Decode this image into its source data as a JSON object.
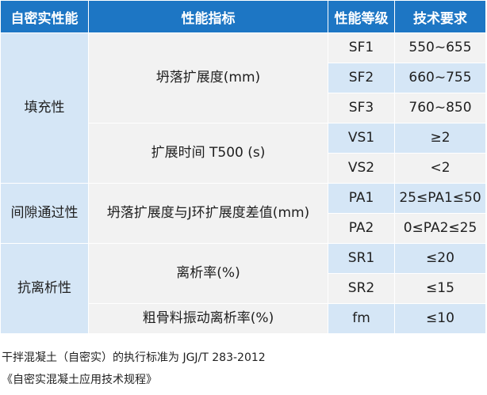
{
  "headers": [
    "自密实性能",
    "性能指标",
    "性能等级",
    "技术要求"
  ],
  "groups": {
    "filling": "填充性",
    "passing": "间隙通过性",
    "segregation": "抗离析性"
  },
  "indicators": {
    "slump_flow": "坍落扩展度(mm)",
    "t500": "扩展时间 T500 (s)",
    "slump_diff": "坍落扩展度与J环扩展度差值(mm)",
    "segregation_rate": "离析率(%)",
    "coarse_vibration": "粗骨料振动离析率(%)"
  },
  "rows": [
    {
      "grade": "SF1",
      "requirement": "550~655"
    },
    {
      "grade": "SF2",
      "requirement": "660~755"
    },
    {
      "grade": "SF3",
      "requirement": "760~850"
    },
    {
      "grade": "VS1",
      "requirement": "≥2"
    },
    {
      "grade": "VS2",
      "requirement": "<2"
    },
    {
      "grade": "PA1",
      "requirement": "25≤PA1≤50"
    },
    {
      "grade": "PA2",
      "requirement": "0≤PA2≤25"
    },
    {
      "grade": "SR1",
      "requirement": "≤20"
    },
    {
      "grade": "SR2",
      "requirement": "≤15"
    },
    {
      "grade": "fm",
      "requirement": "≤10"
    }
  ],
  "footnotes": [
    "干拌混凝土（自密实）的执行标准为 JGJ/T 283-2012",
    "《自密实混凝土应用技术规程》"
  ],
  "colors": {
    "header_bg": "#1d76c4",
    "group_bg": "#d5e6f6",
    "light_bg": "#f2f2f2"
  }
}
